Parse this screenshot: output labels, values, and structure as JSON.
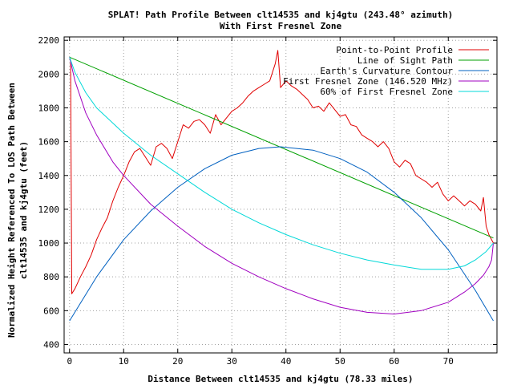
{
  "chart_data": {
    "type": "line",
    "title_line1": "SPLAT! Path Profile Between clt14535 and kj4gtu (243.48° azimuth)",
    "title_line2": "With First Fresnel Zone",
    "xlabel": "Distance Between clt14535 and kj4gtu (78.33 miles)",
    "ylabel_line1": "Normalized Height Referenced To LOS Path Between",
    "ylabel_line2": "clt14535 and kj4gtu (feet)",
    "xlim": [
      -1,
      79
    ],
    "ylim": [
      350,
      2220
    ],
    "grid": true,
    "legend_position": "top-right",
    "x_ticks": [
      0,
      10,
      20,
      30,
      40,
      50,
      60,
      70
    ],
    "y_ticks": [
      400,
      600,
      800,
      1000,
      1200,
      1400,
      1600,
      1800,
      2000,
      2200
    ],
    "series": [
      {
        "name": "Point-to-Point Profile",
        "color": "#e00000",
        "x": [
          0,
          0.2,
          0.4,
          1,
          2,
          3,
          4,
          5,
          6,
          7,
          8,
          9,
          10,
          11,
          12,
          13,
          14,
          15,
          16,
          17,
          18,
          19,
          20,
          21,
          22,
          23,
          24,
          25,
          26,
          27,
          28,
          29,
          30,
          31,
          32,
          33,
          34,
          35,
          36,
          37,
          38,
          38.5,
          39,
          40,
          41,
          42,
          43,
          44,
          45,
          46,
          47,
          48,
          49,
          50,
          51,
          52,
          53,
          54,
          55,
          56,
          57,
          58,
          59,
          60,
          61,
          62,
          63,
          64,
          65,
          66,
          67,
          68,
          69,
          70,
          71,
          72,
          73,
          74,
          75,
          76,
          76.5,
          77,
          77.5,
          78.33
        ],
        "y": [
          2100,
          2080,
          700,
          730,
          800,
          860,
          930,
          1020,
          1090,
          1150,
          1250,
          1330,
          1400,
          1480,
          1540,
          1560,
          1510,
          1460,
          1570,
          1590,
          1560,
          1500,
          1600,
          1700,
          1680,
          1720,
          1730,
          1700,
          1650,
          1760,
          1700,
          1740,
          1780,
          1800,
          1830,
          1870,
          1900,
          1920,
          1940,
          1960,
          2060,
          2140,
          1920,
          1960,
          1930,
          1910,
          1880,
          1850,
          1800,
          1810,
          1780,
          1830,
          1790,
          1750,
          1760,
          1700,
          1690,
          1640,
          1620,
          1600,
          1570,
          1600,
          1560,
          1480,
          1450,
          1490,
          1470,
          1400,
          1380,
          1360,
          1330,
          1360,
          1290,
          1250,
          1280,
          1250,
          1220,
          1250,
          1230,
          1190,
          1270,
          1100,
          1050,
          1000
        ]
      },
      {
        "name": "Line of Sight Path",
        "color": "#00a000",
        "x": [
          0,
          78.33
        ],
        "y": [
          2100,
          1030
        ]
      },
      {
        "name": "Earth's Curvature Contour",
        "color": "#0060c0",
        "x": [
          0,
          5,
          10,
          15,
          20,
          25,
          30,
          35,
          39,
          45,
          50,
          55,
          60,
          65,
          70,
          75,
          78.33
        ],
        "y": [
          540,
          800,
          1020,
          1190,
          1330,
          1440,
          1520,
          1560,
          1570,
          1550,
          1500,
          1420,
          1300,
          1150,
          960,
          720,
          540
        ]
      },
      {
        "name": "First Fresnel Zone (146.520 MHz)",
        "color": "#a000c0",
        "x": [
          0,
          1,
          3,
          5,
          8,
          10,
          15,
          20,
          25,
          30,
          35,
          40,
          45,
          50,
          55,
          60,
          65,
          70,
          73,
          75,
          76.5,
          77.5,
          78,
          78.33
        ],
        "y": [
          2100,
          1960,
          1770,
          1640,
          1480,
          1400,
          1230,
          1100,
          980,
          880,
          800,
          730,
          670,
          620,
          590,
          580,
          600,
          650,
          710,
          760,
          810,
          860,
          900,
          1000
        ]
      },
      {
        "name": "60% of First Fresnel Zone",
        "color": "#00d8d8",
        "x": [
          0,
          1,
          3,
          5,
          8,
          10,
          15,
          20,
          25,
          30,
          35,
          40,
          45,
          50,
          55,
          60,
          65,
          70,
          73,
          75,
          77,
          78.33
        ],
        "y": [
          2100,
          2010,
          1890,
          1800,
          1710,
          1650,
          1520,
          1410,
          1300,
          1200,
          1120,
          1050,
          990,
          940,
          900,
          870,
          845,
          845,
          865,
          900,
          950,
          1000
        ]
      }
    ]
  }
}
